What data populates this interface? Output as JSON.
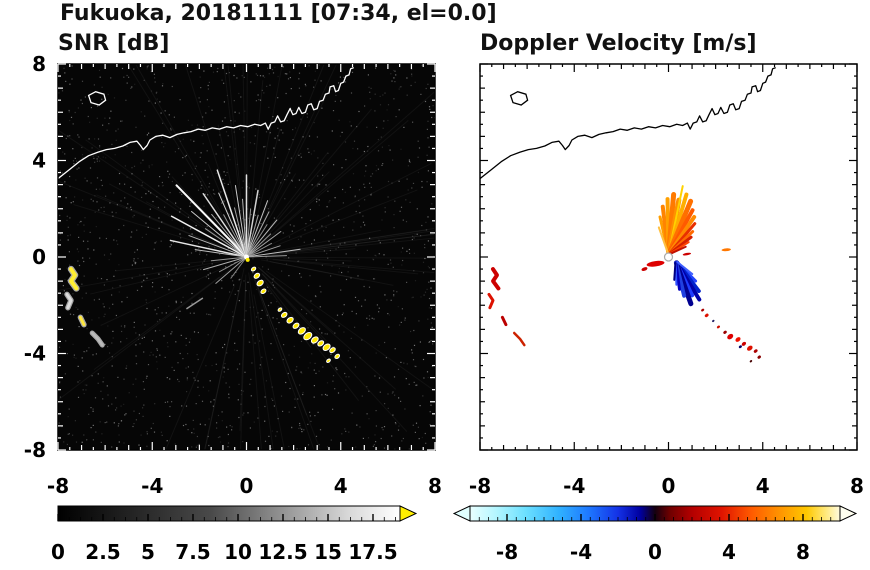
{
  "chart_data": {
    "type": "heatmap",
    "title": "Fukuoka, 20181111 [07:34, el=0.0]",
    "station": "Fukuoka",
    "date": "20181111",
    "time": "07:34",
    "elevation": 0.0,
    "axis": {
      "range": [
        -8,
        8
      ],
      "major_ticks": [
        -8,
        -4,
        0,
        4,
        8
      ],
      "minor_step": 0.5
    },
    "panels": [
      {
        "id": "snr",
        "label": "SNR [dB]",
        "background": "#060606",
        "tick_color": "#ffffff",
        "coast_color": "#ffffff",
        "colorbar": {
          "vmin": 0,
          "vmax": 19,
          "minor_step": 0.625,
          "labels": [
            0,
            2.5,
            5,
            7.5,
            10,
            12.5,
            15,
            17.5
          ],
          "stops": [
            [
              0,
              "#000000"
            ],
            [
              0.45,
              "#4a4a4a"
            ],
            [
              0.85,
              "#d8d8d8"
            ],
            [
              1,
              "#ffffff"
            ]
          ],
          "over_color": "#ffee00"
        }
      },
      {
        "id": "velocity",
        "label": "Doppler Velocity [m/s]",
        "background": "#ffffff",
        "tick_color": "#000000",
        "coast_color": "#000000",
        "colorbar": {
          "vmin": -10,
          "vmax": 10,
          "minor_step": 0.5,
          "labels": [
            -8,
            -4,
            0,
            4,
            8
          ],
          "stops": [
            [
              0,
              "#eaffff"
            ],
            [
              0.07,
              "#b4f6ff"
            ],
            [
              0.15,
              "#6ce0ff"
            ],
            [
              0.24,
              "#30b2ff"
            ],
            [
              0.32,
              "#1e78ff"
            ],
            [
              0.4,
              "#1432e6"
            ],
            [
              0.46,
              "#0000a0"
            ],
            [
              0.5,
              "#140010"
            ],
            [
              0.54,
              "#6e0000"
            ],
            [
              0.6,
              "#b40000"
            ],
            [
              0.68,
              "#e01400"
            ],
            [
              0.76,
              "#ff5a00"
            ],
            [
              0.84,
              "#ff9600"
            ],
            [
              0.91,
              "#ffc800"
            ],
            [
              0.96,
              "#ffe878"
            ],
            [
              1,
              "#fffbe0"
            ]
          ],
          "under_color": "#e0ffff",
          "over_color": "#fffff0"
        }
      }
    ],
    "coastline": [
      [
        -8,
        3.25
      ],
      [
        -7.55,
        3.6
      ],
      [
        -7.1,
        3.95
      ],
      [
        -6.7,
        4.2
      ],
      [
        -6.3,
        4.35
      ],
      [
        -5.95,
        4.45
      ],
      [
        -5.6,
        4.5
      ],
      [
        -5.25,
        4.6
      ],
      [
        -4.95,
        4.75
      ],
      [
        -4.65,
        4.8
      ],
      [
        -4.5,
        4.62
      ],
      [
        -4.38,
        4.45
      ],
      [
        -4.22,
        4.62
      ],
      [
        -4.1,
        4.85
      ],
      [
        -3.85,
        5.0
      ],
      [
        -3.55,
        5.05
      ],
      [
        -3.25,
        4.95
      ],
      [
        -2.95,
        5.08
      ],
      [
        -2.65,
        5.15
      ],
      [
        -2.35,
        5.2
      ],
      [
        -2.05,
        5.3
      ],
      [
        -1.75,
        5.25
      ],
      [
        -1.45,
        5.35
      ],
      [
        -1.15,
        5.3
      ],
      [
        -0.85,
        5.4
      ],
      [
        -0.55,
        5.35
      ],
      [
        -0.25,
        5.45
      ],
      [
        0.05,
        5.4
      ],
      [
        0.35,
        5.5
      ],
      [
        0.6,
        5.45
      ],
      [
        0.8,
        5.55
      ],
      [
        0.92,
        5.3
      ],
      [
        1.05,
        5.55
      ],
      [
        1.2,
        5.6
      ],
      [
        1.32,
        5.85
      ],
      [
        1.45,
        5.6
      ],
      [
        1.6,
        5.65
      ],
      [
        1.72,
        5.9
      ],
      [
        1.85,
        6.15
      ],
      [
        1.97,
        5.9
      ],
      [
        2.1,
        5.95
      ],
      [
        2.22,
        6.2
      ],
      [
        2.35,
        5.95
      ],
      [
        2.5,
        6.0
      ],
      [
        2.6,
        6.3
      ],
      [
        2.75,
        6.35
      ],
      [
        2.85,
        6.1
      ],
      [
        3.0,
        6.15
      ],
      [
        3.1,
        6.45
      ],
      [
        3.25,
        6.5
      ],
      [
        3.35,
        6.75
      ],
      [
        3.5,
        6.8
      ],
      [
        3.55,
        7.05
      ],
      [
        3.7,
        7.1
      ],
      [
        3.78,
        6.85
      ],
      [
        3.9,
        6.9
      ],
      [
        4.0,
        7.2
      ],
      [
        4.12,
        7.25
      ],
      [
        4.22,
        7.5
      ],
      [
        4.35,
        7.55
      ],
      [
        4.42,
        7.8
      ],
      [
        4.55,
        7.85
      ]
    ],
    "island": [
      [
        -6.7,
        6.7
      ],
      [
        -6.4,
        6.85
      ],
      [
        -6.05,
        6.75
      ],
      [
        -5.98,
        6.5
      ],
      [
        -6.25,
        6.3
      ],
      [
        -6.6,
        6.4
      ]
    ],
    "snr": {
      "rays": [
        [
          168,
          3.3,
          230,
          1.5
        ],
        [
          160,
          2.6,
          180,
          1
        ],
        [
          152,
          3.6,
          240,
          1.5
        ],
        [
          146,
          2.1,
          150,
          1
        ],
        [
          141,
          3.0,
          200,
          1
        ],
        [
          135,
          4.2,
          250,
          2
        ],
        [
          130,
          2.3,
          170,
          1
        ],
        [
          125,
          3.2,
          220,
          1.5
        ],
        [
          119,
          2.0,
          150,
          1
        ],
        [
          114,
          2.9,
          210,
          1
        ],
        [
          109,
          3.8,
          235,
          1.5
        ],
        [
          104,
          2.1,
          160,
          1
        ],
        [
          99,
          3.0,
          200,
          1
        ],
        [
          94,
          2.4,
          180,
          1
        ],
        [
          90,
          3.4,
          225,
          1.5
        ],
        [
          85,
          2.0,
          150,
          1
        ],
        [
          80,
          2.8,
          210,
          1.5
        ],
        [
          74,
          1.8,
          160,
          1
        ],
        [
          69,
          2.5,
          195,
          1
        ],
        [
          63,
          2.1,
          170,
          1
        ],
        [
          57,
          1.6,
          140,
          1
        ],
        [
          50,
          2.0,
          185,
          1
        ],
        [
          43,
          1.4,
          150,
          1
        ],
        [
          36,
          1.8,
          165,
          1
        ],
        [
          28,
          1.2,
          140,
          1
        ],
        [
          18,
          1.5,
          160,
          1
        ],
        [
          8,
          2.3,
          190,
          1
        ],
        [
          2,
          1.7,
          150,
          1
        ],
        [
          186,
          1.5,
          150,
          1
        ],
        [
          196,
          1.9,
          175,
          1
        ],
        [
          208,
          1.3,
          140,
          1
        ],
        [
          220,
          1.7,
          160,
          1
        ],
        [
          233,
          1.1,
          130,
          1
        ],
        [
          172,
          2.2,
          190,
          1
        ]
      ],
      "chain": [
        [
          0.3,
          -0.5,
          0.1
        ],
        [
          0.44,
          -0.78,
          0.13
        ],
        [
          0.58,
          -1.08,
          0.15
        ],
        [
          0.72,
          -1.42,
          0.12
        ],
        [
          1.42,
          -2.18,
          0.09
        ],
        [
          1.6,
          -2.4,
          0.13
        ],
        [
          1.85,
          -2.62,
          0.15
        ],
        [
          2.1,
          -2.85,
          0.14
        ],
        [
          2.35,
          -3.06,
          0.17
        ],
        [
          2.6,
          -3.28,
          0.19
        ],
        [
          2.9,
          -3.44,
          0.16
        ],
        [
          3.15,
          -3.58,
          0.14
        ],
        [
          3.4,
          -3.74,
          0.17
        ],
        [
          3.65,
          -3.86,
          0.13
        ],
        [
          3.85,
          -4.12,
          0.11
        ],
        [
          3.48,
          -4.3,
          0.09
        ]
      ],
      "streak": [
        [
          -2.55,
          -2.15
        ],
        [
          -1.85,
          -1.7
        ]
      ]
    },
    "velocity": {
      "pos_rays": [
        [
          103,
          1.6,
          "#ff9e00",
          3
        ],
        [
          97,
          2.0,
          "#ff8400",
          4
        ],
        [
          91,
          2.3,
          "#ffa000",
          4
        ],
        [
          85,
          2.5,
          "#ff7a00",
          5
        ],
        [
          79,
          2.3,
          "#ff9000",
          5
        ],
        [
          78,
          2.9,
          "#ffd200",
          2
        ],
        [
          73,
          2.6,
          "#ffae00",
          4
        ],
        [
          67,
          2.4,
          "#ff7000",
          5
        ],
        [
          61,
          2.1,
          "#ff5a00",
          4
        ],
        [
          55,
          1.9,
          "#ff8c00",
          4
        ],
        [
          49,
          1.7,
          "#e83000",
          3
        ],
        [
          43,
          1.4,
          "#ff6a00",
          3
        ],
        [
          37,
          1.2,
          "#d42000",
          3
        ],
        [
          31,
          1.0,
          "#ff4400",
          2
        ],
        [
          110,
          1.2,
          "#ffc040",
          2
        ],
        [
          24,
          0.8,
          "#c01000",
          2
        ]
      ],
      "neg_rays": [
        [
          -45,
          1.2,
          "#2244ff",
          3
        ],
        [
          -52,
          1.6,
          "#0022cc",
          4
        ],
        [
          -58,
          1.9,
          "#0000a8",
          4
        ],
        [
          -64,
          1.6,
          "#1e3cff",
          4
        ],
        [
          -70,
          1.9,
          "#000090",
          5
        ],
        [
          -76,
          1.5,
          "#2040e0",
          4
        ],
        [
          -82,
          1.2,
          "#0000c0",
          3
        ],
        [
          -88,
          1.0,
          "#3050ff",
          2
        ],
        [
          -94,
          0.8,
          "#000080",
          2
        ],
        [
          -38,
          0.9,
          "#4060ff",
          2
        ]
      ],
      "neg_origin": [
        0.3,
        -0.15
      ],
      "red_blobs": [
        [
          -0.55,
          -0.28,
          0.38,
          0.11,
          -8,
          "#dd0000"
        ],
        [
          -1.02,
          -0.5,
          0.13,
          0.07,
          -20,
          "#cc0000"
        ],
        [
          0.78,
          0.12,
          0.18,
          0.05,
          -10,
          "#cc0000"
        ],
        [
          2.45,
          0.3,
          0.2,
          0.06,
          -5,
          "#ff7700"
        ]
      ],
      "chain": [
        [
          1.45,
          -2.2,
          0.07,
          "#aa0000"
        ],
        [
          1.62,
          -2.42,
          0.09,
          "#dd1100"
        ],
        [
          1.9,
          -2.65,
          0.06,
          "#222266"
        ],
        [
          2.12,
          -2.9,
          0.07,
          "#cc1100"
        ],
        [
          2.4,
          -3.12,
          0.08,
          "#990000"
        ],
        [
          2.62,
          -3.3,
          0.14,
          "#dd0000"
        ],
        [
          2.95,
          -3.42,
          0.12,
          "#ee1100"
        ],
        [
          3.2,
          -3.6,
          0.1,
          "#cc0000"
        ],
        [
          3.05,
          -3.72,
          0.07,
          "#000066"
        ],
        [
          3.45,
          -3.78,
          0.13,
          "#dd1100"
        ],
        [
          3.7,
          -3.9,
          0.09,
          "#aa0000"
        ],
        [
          3.85,
          -4.15,
          0.08,
          "#880000"
        ],
        [
          3.5,
          -4.32,
          0.06,
          "#440000"
        ]
      ]
    },
    "west_paths": [
      {
        "pts": [
          [
            -7.45,
            -0.5
          ],
          [
            -7.28,
            -0.75
          ],
          [
            -7.45,
            -1.0
          ],
          [
            -7.22,
            -1.3
          ]
        ],
        "snr": "#ffee33",
        "vel": "#cc0000",
        "w": 4
      },
      {
        "pts": [
          [
            -7.62,
            -1.55
          ],
          [
            -7.45,
            -1.8
          ],
          [
            -7.58,
            -2.1
          ]
        ],
        "snr": "#dddddd",
        "vel": "#dd1100",
        "w": 3
      },
      {
        "pts": [
          [
            -7.05,
            -2.5
          ],
          [
            -6.9,
            -2.8
          ]
        ],
        "snr": "#ffe840",
        "vel": "#bb0000",
        "w": 3
      },
      {
        "pts": [
          [
            -6.55,
            -3.15
          ],
          [
            -6.3,
            -3.4
          ],
          [
            -6.12,
            -3.65
          ]
        ],
        "snr": "#bbbbbb",
        "vel": "#cc2200",
        "w": 2.5
      }
    ]
  }
}
